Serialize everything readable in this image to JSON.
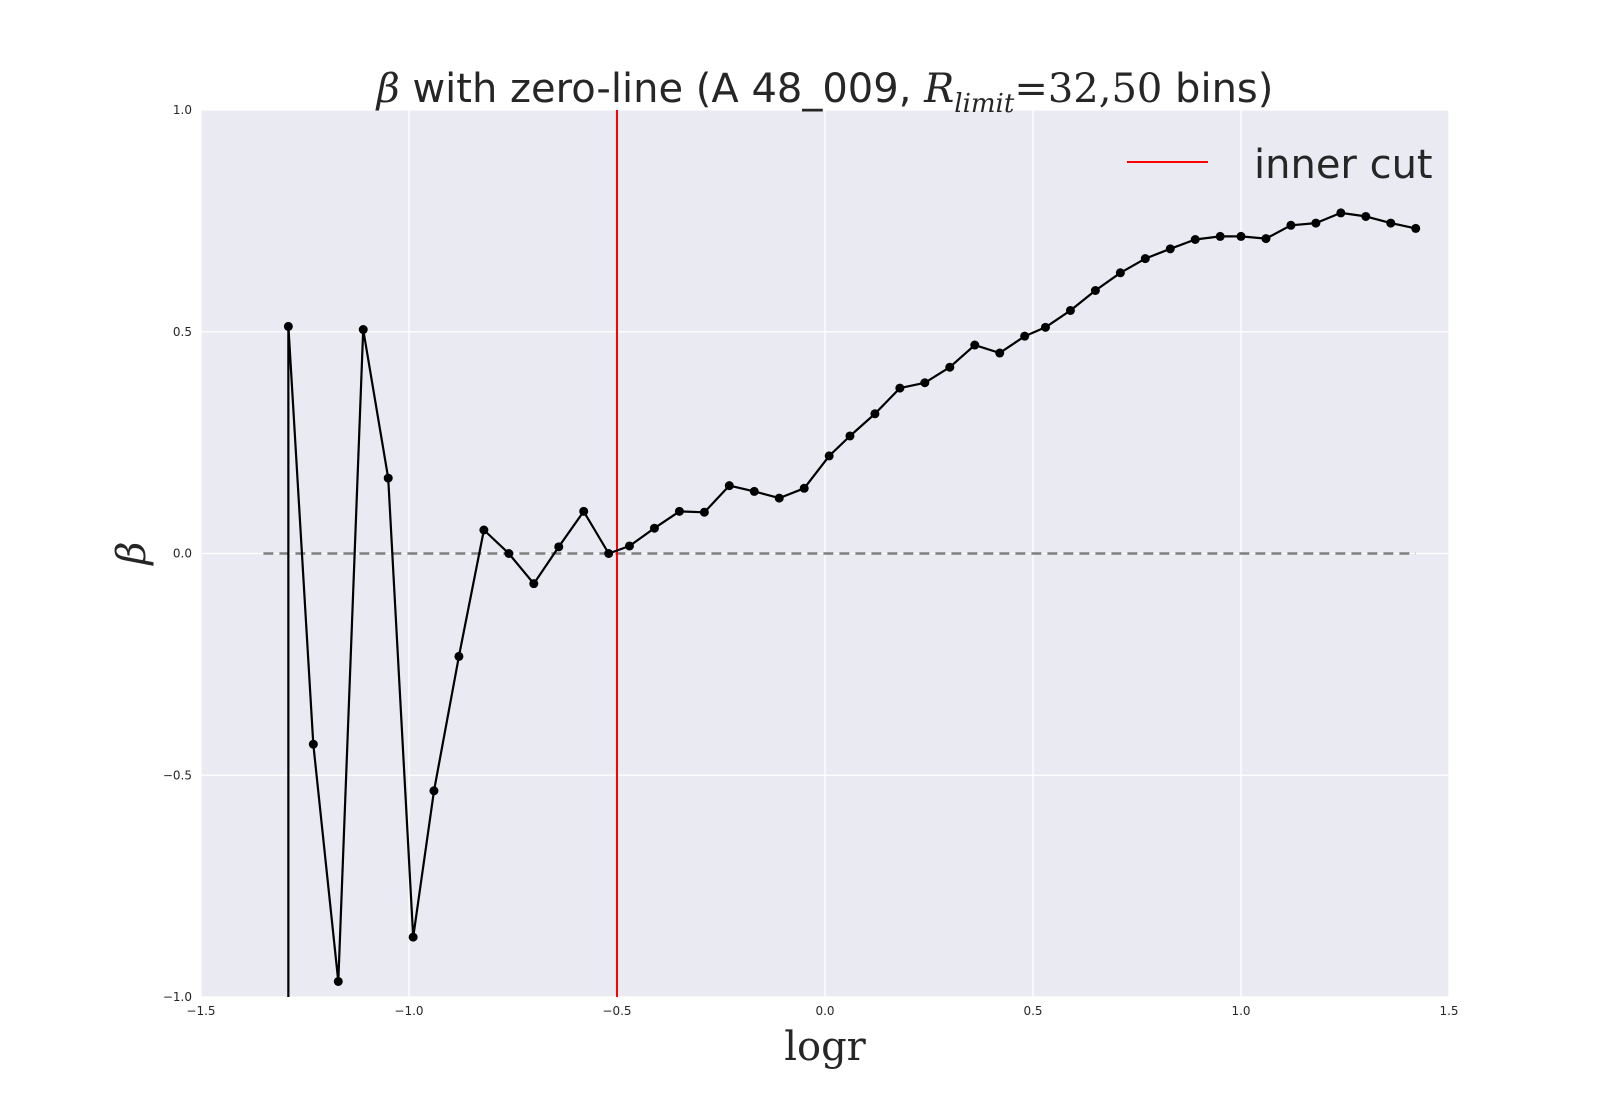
{
  "chart_data": {
    "type": "line",
    "title": "β with zero-line (A 48_009, R_limit=32,50 bins)",
    "title_parts": {
      "beta": "β",
      "prefix": " with zero-line (A 48_009, ",
      "r": "R",
      "sub": "limit",
      "eq": "=32,50",
      "suffix": " bins)"
    },
    "xlabel": "logr",
    "ylabel": "β",
    "xlim": [
      -1.5,
      1.5
    ],
    "ylim": [
      -1.0,
      1.0
    ],
    "xticks": [
      -1.5,
      -1.0,
      -0.5,
      0.0,
      0.5,
      1.0,
      1.5
    ],
    "xtick_labels": [
      "−1.5",
      "−1.0",
      "−0.5",
      "0.0",
      "0.5",
      "1.0",
      "1.5"
    ],
    "yticks": [
      -1.0,
      -0.5,
      0.0,
      0.5,
      1.0
    ],
    "ytick_labels": [
      "−1.0",
      "−0.5",
      "0.0",
      "0.5",
      "1.0"
    ],
    "grid": true,
    "background_color": "#eaeaf2",
    "legend": {
      "placement": "top-right",
      "entries": [
        {
          "label": "inner cut",
          "color": "#ff0000"
        }
      ]
    },
    "inner_cut": {
      "x": -0.5,
      "color": "#ff0000"
    },
    "zero_line": {
      "y": 0.0,
      "x_range": [
        -1.35,
        1.42
      ],
      "style": "dashed",
      "color": "#808080"
    },
    "drop_line": {
      "x": -1.29,
      "y_from": 0.512,
      "y_to": -1.0
    },
    "series": [
      {
        "color": "#000000",
        "marker": "circle",
        "x": [
          -1.29,
          -1.23,
          -1.17,
          -1.11,
          -1.05,
          -0.99,
          -0.94,
          -0.88,
          -0.82,
          -0.76,
          -0.7,
          -0.64,
          -0.58,
          -0.52,
          -0.47,
          -0.41,
          -0.35,
          -0.29,
          -0.23,
          -0.17,
          -0.11,
          -0.05,
          0.01,
          0.06,
          0.12,
          0.18,
          0.24,
          0.3,
          0.36,
          0.42,
          0.48,
          0.53,
          0.59,
          0.65,
          0.71,
          0.77,
          0.83,
          0.89,
          0.95,
          1.0,
          1.06,
          1.12,
          1.18,
          1.24,
          1.3,
          1.36,
          1.42
        ],
        "y": [
          0.512,
          -0.43,
          -0.965,
          0.505,
          0.17,
          -0.865,
          -0.535,
          -0.232,
          0.053,
          0.0,
          -0.068,
          0.015,
          0.095,
          0.0,
          0.017,
          0.057,
          0.095,
          0.093,
          0.153,
          0.14,
          0.125,
          0.147,
          0.22,
          0.265,
          0.315,
          0.373,
          0.385,
          0.42,
          0.47,
          0.452,
          0.49,
          0.51,
          0.548,
          0.593,
          0.633,
          0.665,
          0.687,
          0.708,
          0.715,
          0.715,
          0.71,
          0.74,
          0.745,
          0.768,
          0.76,
          0.745,
          0.733
        ]
      }
    ]
  }
}
